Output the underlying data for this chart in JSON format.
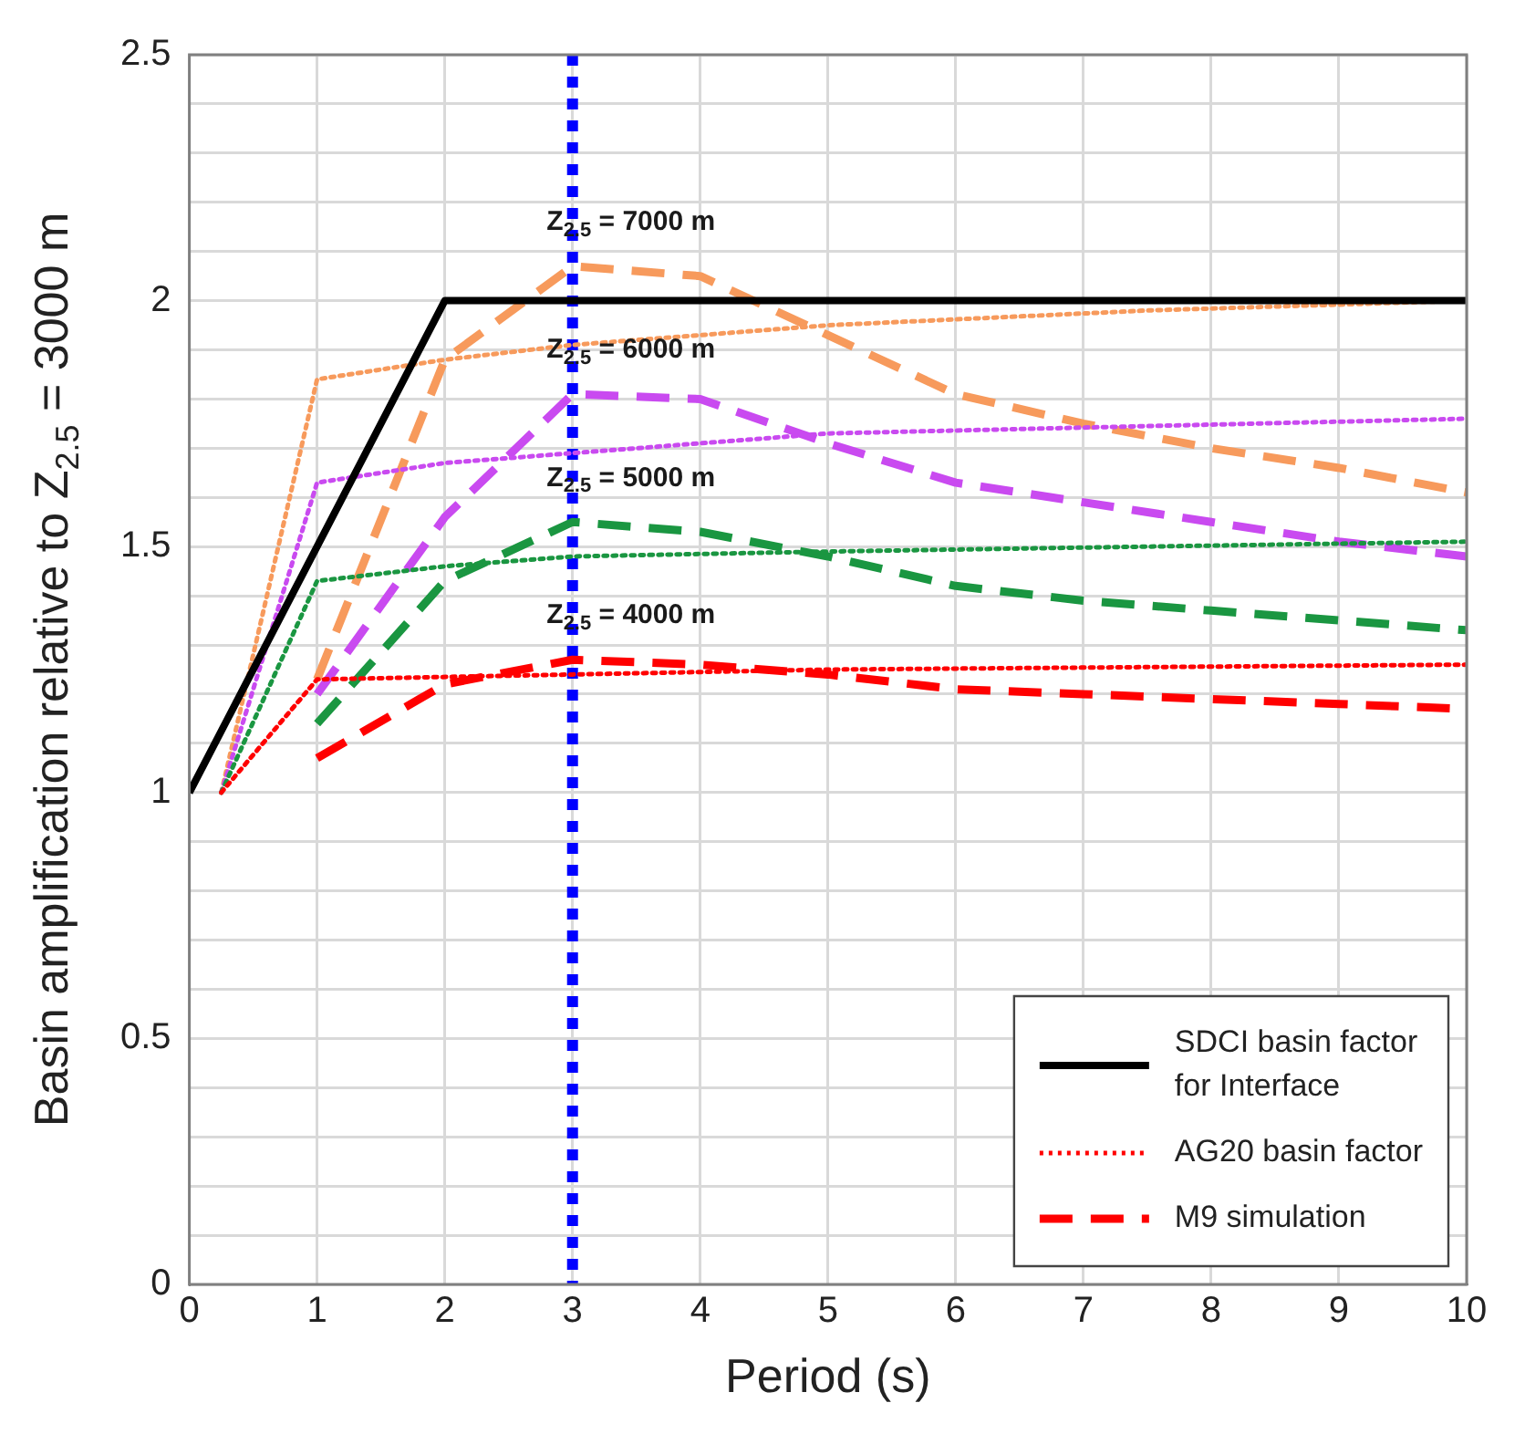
{
  "chart_data": {
    "type": "line",
    "xlabel": "Period (s)",
    "ylabel": "Basin amplification relative to Z$_{2.5}$ = 3000 m",
    "xlim": [
      0,
      10
    ],
    "xticks": [
      0,
      1,
      2,
      3,
      4,
      5,
      6,
      7,
      8,
      9,
      10
    ],
    "ylim": [
      0,
      2.5
    ],
    "yticks": [
      0,
      {
        "value": 0.1,
        "label": null
      },
      {
        "value": 0.2,
        "label": null
      },
      {
        "value": 0.3,
        "label": null
      },
      {
        "value": 0.4,
        "label": null
      },
      0.5,
      {
        "value": 0.6,
        "label": null
      },
      {
        "value": 0.7,
        "label": null
      },
      {
        "value": 0.8,
        "label": null
      },
      {
        "value": 0.9,
        "label": null
      },
      1,
      {
        "value": 1.1,
        "label": null
      },
      {
        "value": 1.2,
        "label": null
      },
      {
        "value": 1.3,
        "label": null
      },
      {
        "value": 1.4,
        "label": null
      },
      1.5,
      {
        "value": 1.6,
        "label": null
      },
      {
        "value": 1.7,
        "label": null
      },
      {
        "value": 1.8,
        "label": null
      },
      {
        "value": 1.9,
        "label": null
      },
      2,
      {
        "value": 2.1,
        "label": null
      },
      {
        "value": 2.2,
        "label": null
      },
      {
        "value": 2.3,
        "label": null
      },
      {
        "value": 2.4,
        "label": null
      },
      2.5
    ],
    "grid": true,
    "legend": "bottom right",
    "marker": "none",
    "series": [
      {
        "name": "SDCI basin factor for Interface",
        "color": "#000000",
        "line_style": "solid",
        "x": [
          0,
          2,
          10
        ],
        "values": [
          1,
          2,
          2
        ]
      },
      {
        "name": "AG20 basin factor",
        "color": "#ff0000",
        "line_style": "dotted",
        "x": [
          0.25,
          1,
          3,
          5,
          10
        ],
        "values": [
          1,
          1.23,
          1.24,
          1.25,
          1.26
        ]
      },
      {
        "color": "#1a9641",
        "line_style": "dotted",
        "x": [
          0.25,
          1,
          2,
          3,
          5,
          10
        ],
        "values": [
          1,
          1.43,
          1.46,
          1.48,
          1.49,
          1.51
        ]
      },
      {
        "color": "#c94af0",
        "line_style": "dotted",
        "x": [
          0.25,
          1,
          2,
          3,
          5,
          10
        ],
        "values": [
          1,
          1.63,
          1.67,
          1.69,
          1.73,
          1.76
        ]
      },
      {
        "color": "#f79a5c",
        "line_style": "dotted",
        "x": [
          0.25,
          1,
          2,
          3,
          5,
          7.5,
          10
        ],
        "values": [
          1,
          1.84,
          1.88,
          1.91,
          1.95,
          1.98,
          2.0
        ]
      },
      {
        "name": "M9 simulation",
        "color": "#ff0000",
        "line_style": "dashed",
        "x": [
          1,
          2,
          3,
          4,
          5,
          6,
          7,
          8,
          9,
          10
        ],
        "values": [
          1.07,
          1.22,
          1.27,
          1.26,
          1.24,
          1.21,
          1.2,
          1.19,
          1.18,
          1.17
        ]
      },
      {
        "color": "#1a9641",
        "line_style": "dashed",
        "x": [
          1,
          2,
          3,
          4,
          5,
          6,
          7,
          8,
          9,
          10
        ],
        "values": [
          1.14,
          1.43,
          1.55,
          1.53,
          1.48,
          1.42,
          1.39,
          1.37,
          1.35,
          1.33
        ]
      },
      {
        "color": "#c94af0",
        "line_style": "dashed",
        "x": [
          1,
          2,
          3,
          4,
          5,
          6,
          7,
          8,
          9,
          10
        ],
        "values": [
          1.2,
          1.56,
          1.81,
          1.8,
          1.71,
          1.63,
          1.59,
          1.55,
          1.51,
          1.48
        ]
      },
      {
        "color": "#f79a5c",
        "line_style": "dashed",
        "x": [
          1,
          2,
          3,
          4,
          5,
          6,
          7,
          8,
          9,
          10
        ],
        "values": [
          1.23,
          1.88,
          2.07,
          2.05,
          1.93,
          1.81,
          1.75,
          1.7,
          1.66,
          1.61
        ]
      }
    ],
    "ref_lines": [
      {
        "axis": "x",
        "value": 3,
        "color": "#0000ff",
        "line_style": "dotted"
      }
    ],
    "annotations": [
      "Z$_{2.5}$ = 7000 m",
      "Z$_{2.5}$ = 6000 m",
      "Z$_{2.5}$ = 5000 m",
      "Z$_{2.5}$ = 4000 m"
    ]
  }
}
